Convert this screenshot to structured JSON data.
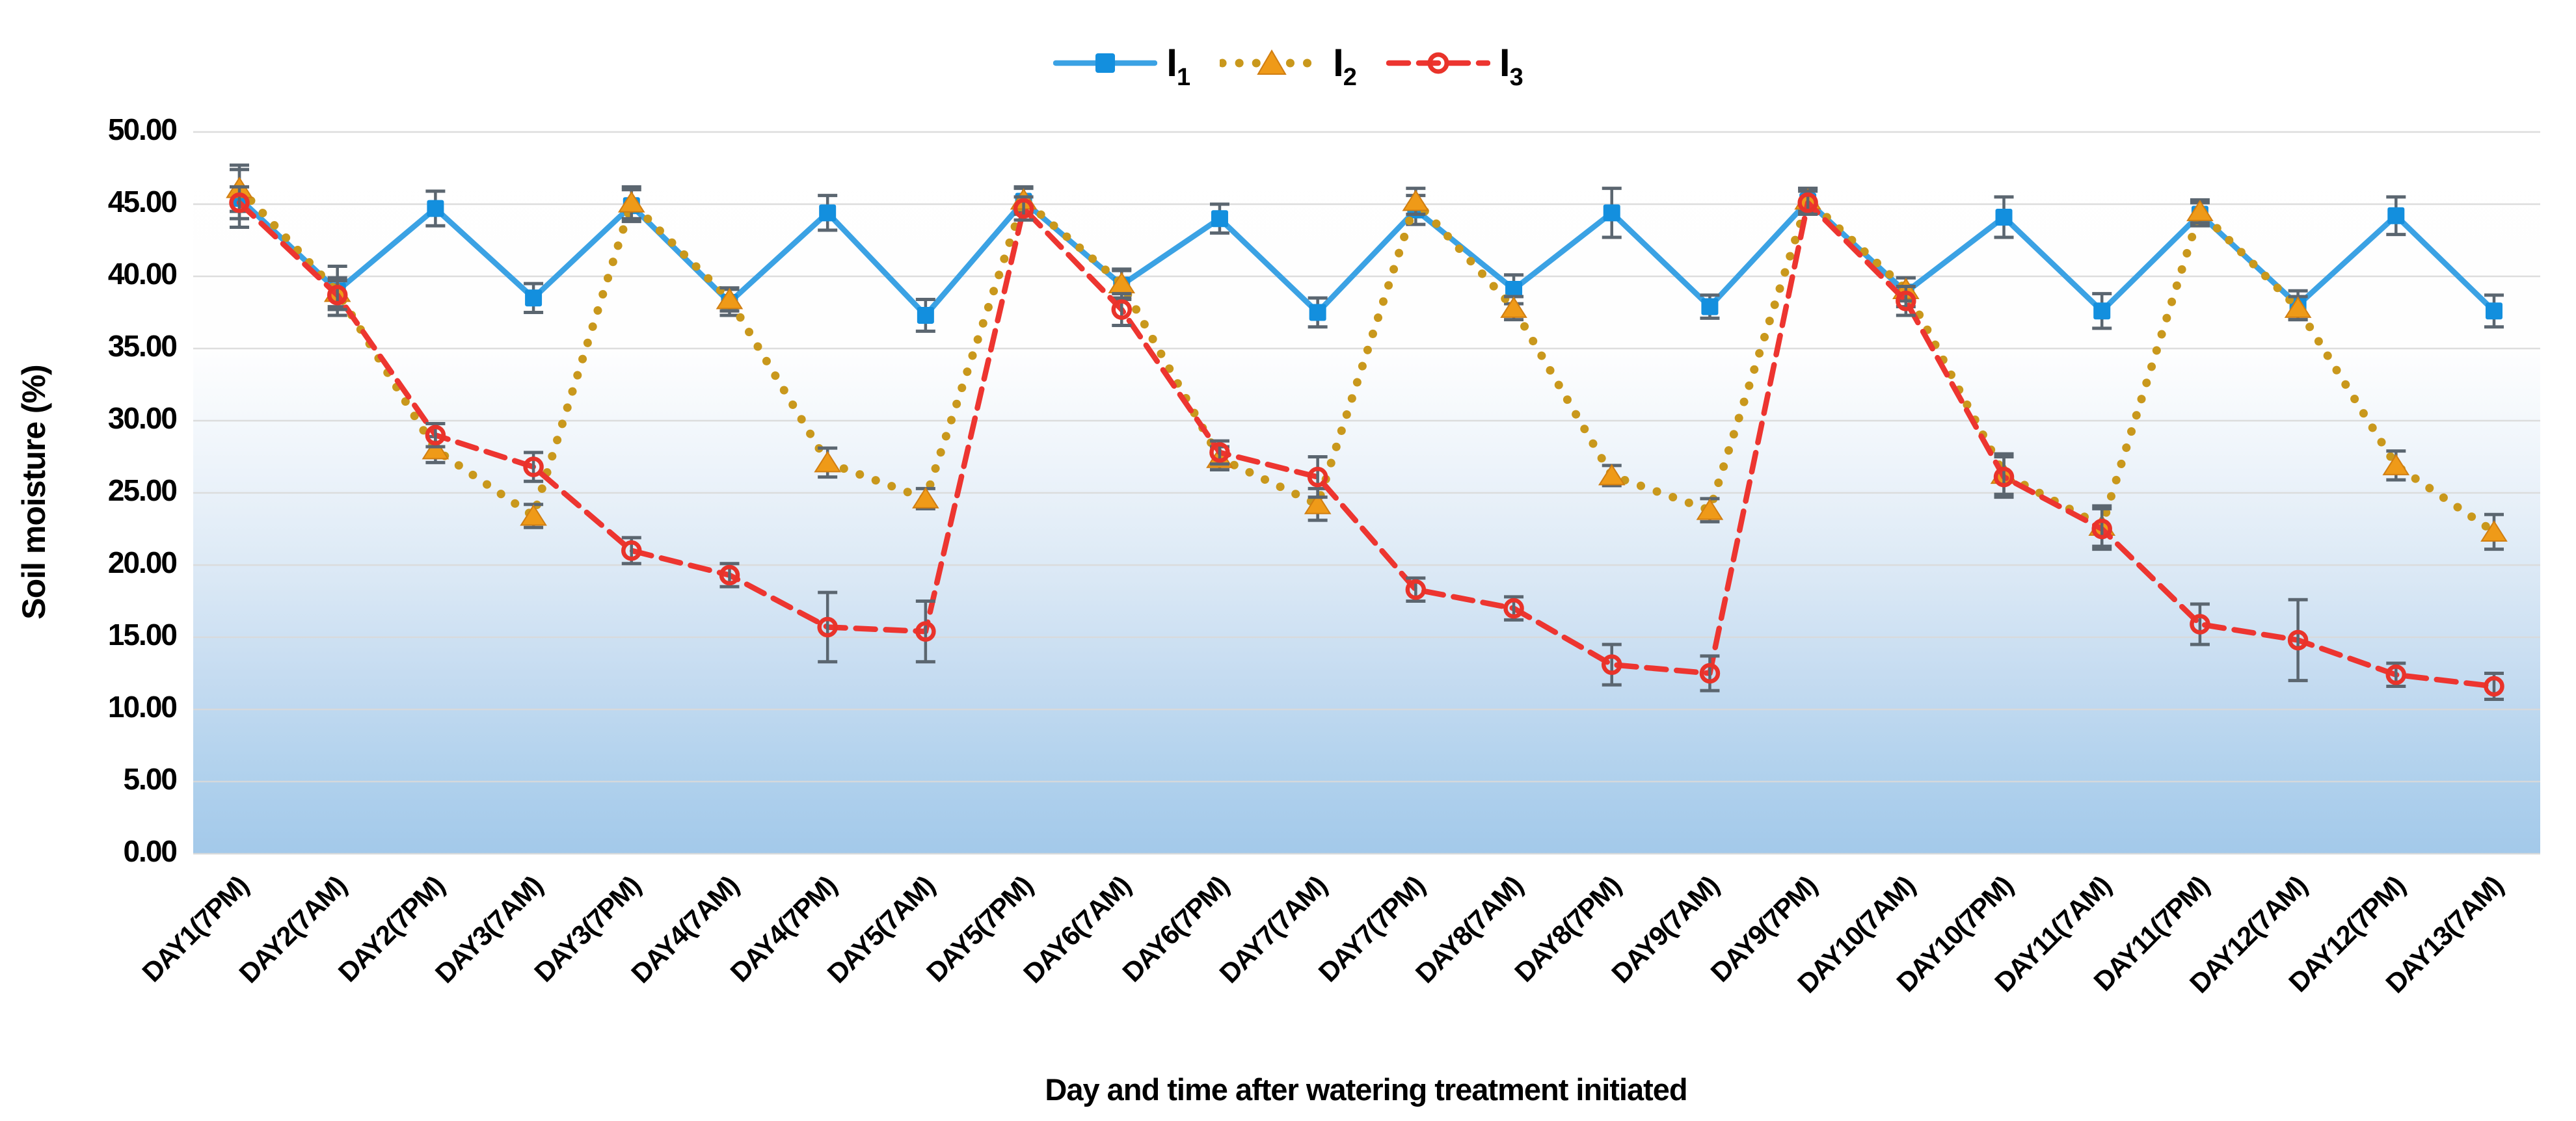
{
  "chart_data": {
    "type": "line",
    "title": "",
    "xlabel": "Day and time after watering treatment initiated",
    "ylabel": "Soil moisture (%)",
    "ylim": [
      0,
      50
    ],
    "ytick_step": 5,
    "ytick_labels": [
      "50.00",
      "45.00",
      "40.00",
      "35.00",
      "30.00",
      "25.00",
      "20.00",
      "15.00",
      "10.00",
      "5.00",
      "0.00"
    ],
    "grid": true,
    "legend_position": "top-center",
    "error_bars": true,
    "gridline_color": "#D9D9D9",
    "error_bar_color": "#5B6670",
    "background_gradient": {
      "top": "#FFFFFF",
      "bottom": "#A3C9EA"
    },
    "categories": [
      "DAY1(7PM)",
      "DAY2(7AM)",
      "DAY2(7PM)",
      "DAY3(7AM)",
      "DAY3(7PM)",
      "DAY4(7AM)",
      "DAY4(7PM)",
      "DAY5(7AM)",
      "DAY5(7PM)",
      "DAY6(7AM)",
      "DAY6(7PM)",
      "DAY7(7AM)",
      "DAY7(7PM)",
      "DAY8(7AM)",
      "DAY8(7PM)",
      "DAY9(7AM)",
      "DAY9(7PM)",
      "DAY10(7AM)",
      "DAY10(7PM)",
      "DAY11(7AM)",
      "DAY11(7PM)",
      "DAY12(7AM)",
      "DAY12(7PM)",
      "DAY13(7AM)"
    ],
    "series": [
      {
        "name": "I1",
        "legend_label": "I",
        "legend_sub": "1",
        "line_style": "solid",
        "marker": "square",
        "line_color": "#3BA2E4",
        "marker_color": "#138FDE",
        "values": [
          45.4,
          39.0,
          44.7,
          38.5,
          44.9,
          38.2,
          44.4,
          37.3,
          45.2,
          39.4,
          44.0,
          37.5,
          44.6,
          39.1,
          44.4,
          37.9,
          45.2,
          38.9,
          44.1,
          37.6,
          44.3,
          38.0,
          44.2,
          37.6
        ],
        "errors": [
          2.0,
          1.7,
          1.2,
          1.0,
          1.1,
          0.9,
          1.2,
          1.1,
          0.9,
          1.0,
          1.0,
          1.0,
          1.0,
          1.0,
          1.7,
          0.8,
          0.9,
          1.0,
          1.4,
          1.2,
          0.8,
          1.0,
          1.3,
          1.1
        ]
      },
      {
        "name": "I2",
        "legend_label": "I",
        "legend_sub": "2",
        "line_style": "dotted",
        "marker": "triangle",
        "line_color": "#C9981C",
        "marker_color": "#EF9A18",
        "values": [
          46.1,
          38.9,
          28.0,
          23.4,
          45.1,
          38.4,
          27.1,
          24.6,
          45.3,
          39.5,
          27.4,
          24.2,
          45.2,
          37.8,
          26.2,
          23.8,
          45.3,
          39.1,
          26.3,
          22.7,
          44.5,
          37.8,
          26.9,
          22.3
        ],
        "errors": [
          1.6,
          1.0,
          0.9,
          0.8,
          1.1,
          0.8,
          1.0,
          0.7,
          0.9,
          1.0,
          0.8,
          1.1,
          0.9,
          0.8,
          0.7,
          0.8,
          0.8,
          0.8,
          1.4,
          1.4,
          0.8,
          0.8,
          1.0,
          1.2
        ]
      },
      {
        "name": "I3",
        "legend_label": "I",
        "legend_sub": "3",
        "line_style": "dashed",
        "marker": "open-circle",
        "line_color": "#ED3530",
        "marker_color": "#E9332A",
        "values": [
          45.1,
          38.7,
          29.0,
          26.8,
          21.0,
          19.3,
          15.7,
          15.4,
          44.7,
          37.7,
          27.8,
          26.1,
          18.3,
          17.0,
          13.1,
          12.5,
          45.1,
          38.3,
          26.1,
          22.5,
          15.9,
          14.8,
          12.4,
          11.6
        ],
        "errors": [
          1.1,
          1.0,
          0.8,
          1.0,
          0.9,
          0.8,
          2.4,
          2.1,
          0.8,
          1.1,
          0.8,
          1.4,
          0.8,
          0.8,
          1.4,
          1.2,
          0.8,
          1.0,
          1.4,
          1.4,
          1.4,
          2.8,
          0.8,
          0.9
        ]
      }
    ]
  }
}
